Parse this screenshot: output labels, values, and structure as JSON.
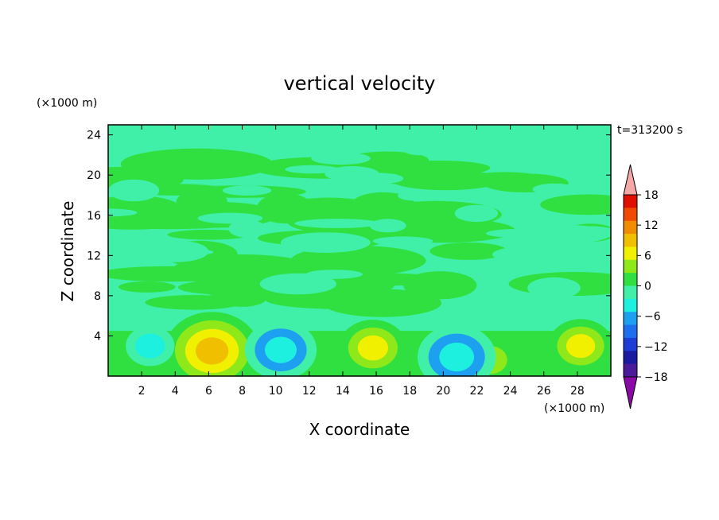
{
  "chart_data": {
    "type": "heatmap",
    "title": "vertical velocity",
    "xlabel": "X coordinate",
    "ylabel": "Z coordinate",
    "x_unit": "(×1000 m)",
    "y_unit": "(×1000 m)",
    "time_label": "t=313200 s",
    "xlim": [
      0,
      30
    ],
    "ylim": [
      0,
      25
    ],
    "x_ticks": [
      2,
      4,
      6,
      8,
      10,
      12,
      14,
      16,
      18,
      20,
      22,
      24,
      26,
      28
    ],
    "y_ticks": [
      4,
      8,
      12,
      16,
      20,
      24
    ],
    "colorbar": {
      "levels": [
        -21,
        -18,
        -15,
        -12,
        -9,
        -6,
        -3,
        0,
        3,
        6,
        9,
        12,
        15,
        18,
        21
      ],
      "tick_labels": [
        "18",
        "12",
        "6",
        "0",
        "−6",
        "−12",
        "−18"
      ],
      "tick_values": [
        18,
        12,
        6,
        0,
        -6,
        -12,
        -18
      ],
      "colors": [
        "#8a0aa8",
        "#4a1a9a",
        "#1a1aa0",
        "#1e3cd6",
        "#1e6ef0",
        "#1ea0f0",
        "#1ef0e0",
        "#40f0a8",
        "#30e040",
        "#8ee81a",
        "#f0f000",
        "#f0c000",
        "#f08c00",
        "#f04a00",
        "#e01000",
        "#f4a8a8"
      ]
    },
    "features": [
      {
        "x": 6.2,
        "z": 2.5,
        "value": 10.5
      },
      {
        "x": 15.8,
        "z": 2.8,
        "value": 6.5
      },
      {
        "x": 28.2,
        "z": 3.0,
        "value": 6.0
      },
      {
        "x": 22.8,
        "z": 1.6,
        "value": 4.5
      },
      {
        "x": 2.5,
        "z": 3.0,
        "value": -3.5
      },
      {
        "x": 10.3,
        "z": 2.6,
        "value": -7.0
      },
      {
        "x": 20.8,
        "z": 1.9,
        "value": -8.0
      }
    ]
  }
}
